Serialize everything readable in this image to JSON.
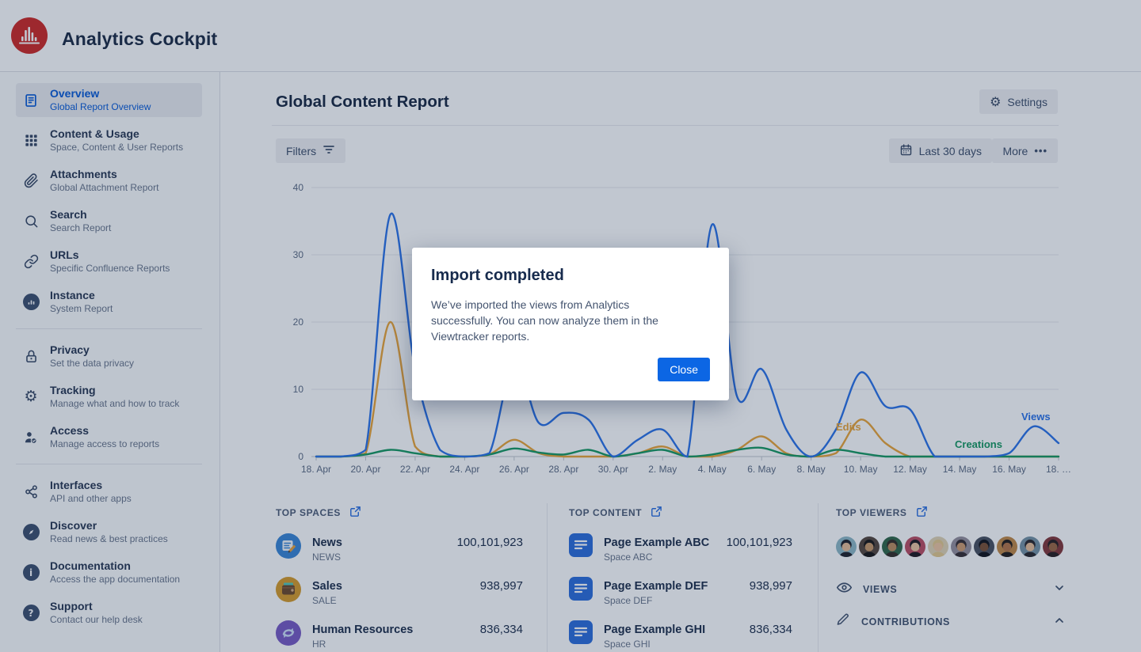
{
  "app": {
    "title": "Analytics Cockpit"
  },
  "colors": {
    "accent_blue": "#0c66e4",
    "views_line": "#2e74e8",
    "edits_line": "#eba63a",
    "creations_line": "#1a9a63",
    "logo_red": "#cf2b27"
  },
  "icons": {
    "gear_glyph": "⚙",
    "more_dots": "•••",
    "info_glyph": "i",
    "question_glyph": "?"
  },
  "sidebar": {
    "items": [
      {
        "label": "Overview",
        "sublabel": "Global Report Overview",
        "icon": "document",
        "active": true
      },
      {
        "label": "Content & Usage",
        "sublabel": "Space, Content & User Reports",
        "icon": "grid",
        "active": false
      },
      {
        "label": "Attachments",
        "sublabel": "Global Attachment Report",
        "icon": "paperclip",
        "active": false
      },
      {
        "label": "Search",
        "sublabel": "Search Report",
        "icon": "magnifier",
        "active": false
      },
      {
        "label": "URLs",
        "sublabel": "Specific Confluence Reports",
        "icon": "link",
        "active": false
      },
      {
        "label": "Instance",
        "sublabel": "System Report",
        "icon": "chart-circle",
        "active": false
      },
      {
        "label": "Privacy",
        "sublabel": "Set the data privacy",
        "icon": "lock",
        "active": false
      },
      {
        "label": "Tracking",
        "sublabel": "Manage what and how to track",
        "icon": "gear",
        "active": false
      },
      {
        "label": "Access",
        "sublabel": "Manage access to reports",
        "icon": "person-check",
        "active": false
      },
      {
        "label": "Interfaces",
        "sublabel": "API and other apps",
        "icon": "nodes",
        "active": false
      },
      {
        "label": "Discover",
        "sublabel": "Read news & best practices",
        "icon": "compass",
        "active": false
      },
      {
        "label": "Documentation",
        "sublabel": "Access the app documentation",
        "icon": "info",
        "active": false
      },
      {
        "label": "Support",
        "sublabel": "Contact our help desk",
        "icon": "question",
        "active": false
      }
    ]
  },
  "page": {
    "title": "Global Content Report",
    "settings_label": "Settings",
    "filters_label": "Filters",
    "date_range_label": "Last 30 days",
    "more_label": "More"
  },
  "chart_data": {
    "type": "line",
    "title": "",
    "xlabel": "",
    "ylabel": "",
    "ylim": [
      0,
      40
    ],
    "y_ticks": [
      0,
      10,
      20,
      30,
      40
    ],
    "grid": true,
    "legend_position": "inline-labels",
    "categories": [
      "18. Apr",
      "19. Apr",
      "20. Apr",
      "21. Apr",
      "22. Apr",
      "23. Apr",
      "24. Apr",
      "25. Apr",
      "26. Apr",
      "27. Apr",
      "28. Apr",
      "29. Apr",
      "30. Apr",
      "1. May",
      "2. May",
      "3. May",
      "4. May",
      "5. May",
      "6. May",
      "7. May",
      "8. May",
      "9. May",
      "10. May",
      "11. May",
      "12. May",
      "13. May",
      "14. May",
      "15. May",
      "16. May",
      "17. May",
      "18. May"
    ],
    "tick_labels": [
      "18. Apr",
      "20. Apr",
      "22. Apr",
      "24. Apr",
      "26. Apr",
      "28. Apr",
      "30. Apr",
      "2. May",
      "4. May",
      "6. May",
      "8. May",
      "10. May",
      "12. May",
      "14. May",
      "16. May",
      "18. …"
    ],
    "series": [
      {
        "name": "Edits",
        "color": "#eba63a",
        "values": [
          0,
          0,
          0.5,
          20,
          1.5,
          0,
          0,
          0.3,
          2.5,
          0.5,
          0,
          0,
          0,
          0.5,
          1.5,
          0,
          0,
          1,
          3,
          0.5,
          0,
          0.5,
          5.5,
          2,
          0,
          0,
          0,
          0,
          0,
          0,
          0
        ]
      },
      {
        "name": "Creations",
        "color": "#1a9a63",
        "values": [
          0,
          0,
          0.3,
          1,
          0.5,
          0,
          0,
          0.3,
          1.2,
          0.6,
          0.3,
          1,
          0,
          0.5,
          1,
          0,
          0.3,
          1,
          1.3,
          0.3,
          0,
          1,
          0.5,
          0,
          0,
          0,
          0,
          0,
          0,
          0,
          0
        ]
      },
      {
        "name": "Views",
        "color": "#2e74e8",
        "values": [
          0,
          0,
          1,
          36,
          13,
          1,
          0,
          0.5,
          14,
          5,
          6.5,
          5.5,
          0,
          2.5,
          4,
          0,
          34.5,
          9,
          13,
          4,
          0,
          4,
          12.5,
          7.5,
          7,
          0,
          0,
          0,
          0.5,
          4.5,
          2
        ]
      }
    ],
    "annotations": [
      {
        "text": "Views",
        "color": "#2e74e8",
        "x": 946,
        "y": 306
      },
      {
        "text": "Edits",
        "color": "#eba63a",
        "x": 712,
        "y": 319
      },
      {
        "text": "Creations",
        "color": "#1a9a63",
        "x": 862,
        "y": 341
      }
    ]
  },
  "panels": {
    "top_spaces": {
      "title": "TOP SPACES",
      "items": [
        {
          "name": "News",
          "key": "NEWS",
          "value": "100,101,923"
        },
        {
          "name": "Sales",
          "key": "SALE",
          "value": "938,997"
        },
        {
          "name": "Human Resources",
          "key": "HR",
          "value": "836,334"
        }
      ]
    },
    "top_content": {
      "title": "TOP CONTENT",
      "items": [
        {
          "name": "Page Example ABC",
          "space": "Space ABC",
          "value": "100,101,923"
        },
        {
          "name": "Page Example DEF",
          "space": "Space DEF",
          "value": "938,997"
        },
        {
          "name": "Page Example GHI",
          "space": "Space GHI",
          "value": "836,334"
        }
      ]
    },
    "top_viewers": {
      "title": "TOP VIEWERS",
      "avatars": [
        {
          "bg": "#8fb9c6",
          "hair": "#23242c",
          "skin": "#e6bd97"
        },
        {
          "bg": "#57493f",
          "hair": "#1d1a18",
          "skin": "#c89a6b"
        },
        {
          "bg": "#33684a",
          "hair": "#372f28",
          "skin": "#bd8e60"
        },
        {
          "bg": "#bc4f63",
          "hair": "#201d22",
          "skin": "#eac4a0"
        },
        {
          "bg": "#e0d3b4",
          "hair": "#e3c98e",
          "skin": "#eec6a2"
        },
        {
          "bg": "#97909c",
          "hair": "#3a3134",
          "skin": "#cf9c72"
        },
        {
          "bg": "#4b5260",
          "hair": "#15161c",
          "skin": "#7c5236"
        },
        {
          "bg": "#c28a49",
          "hair": "#241f1c",
          "skin": "#b5764a"
        },
        {
          "bg": "#7793a4",
          "hair": "#2c2a2e",
          "skin": "#e7bf9a"
        },
        {
          "bg": "#84393b",
          "hair": "#2a2122",
          "skin": "#9c6844"
        }
      ]
    },
    "accordions": [
      {
        "label": "VIEWS",
        "state": "collapsed"
      },
      {
        "label": "CONTRIBUTIONS",
        "state": "expanded"
      }
    ]
  },
  "modal": {
    "title": "Import completed",
    "body": "We’ve imported the views from Analytics successfully. You can now analyze them in the Viewtracker reports.",
    "close_label": "Close"
  }
}
